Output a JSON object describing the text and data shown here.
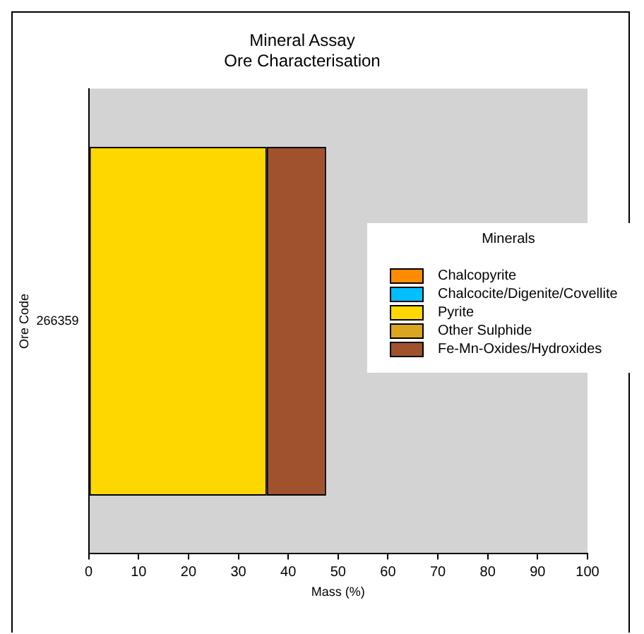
{
  "chart_data": {
    "type": "bar",
    "orientation": "horizontal",
    "stacked": true,
    "title": "Mineral Assay",
    "subtitle": "Ore Characterisation",
    "xlabel": "Mass (%)",
    "ylabel": "Ore Code",
    "legend_title": "Minerals",
    "legend": "right",
    "grid": false,
    "categories": [
      "266359"
    ],
    "series": [
      {
        "name": "Chalcopyrite",
        "color": "#ff8c00",
        "values": [
          0
        ]
      },
      {
        "name": "Chalcocite/Digenite/Covellite",
        "color": "#00bfff",
        "values": [
          0
        ]
      },
      {
        "name": "Pyrite",
        "color": "#ffd700",
        "values": [
          35.7
        ]
      },
      {
        "name": "Other Sulphide",
        "color": "#daa520",
        "values": [
          0
        ]
      },
      {
        "name": "Fe-Mn-Oxides/Hydroxides",
        "color": "#a0522d",
        "values": [
          11.9
        ]
      }
    ],
    "xlim": [
      0,
      100
    ],
    "xticks": [
      0,
      10,
      20,
      30,
      40,
      50,
      60,
      70,
      80,
      90,
      100
    ]
  }
}
